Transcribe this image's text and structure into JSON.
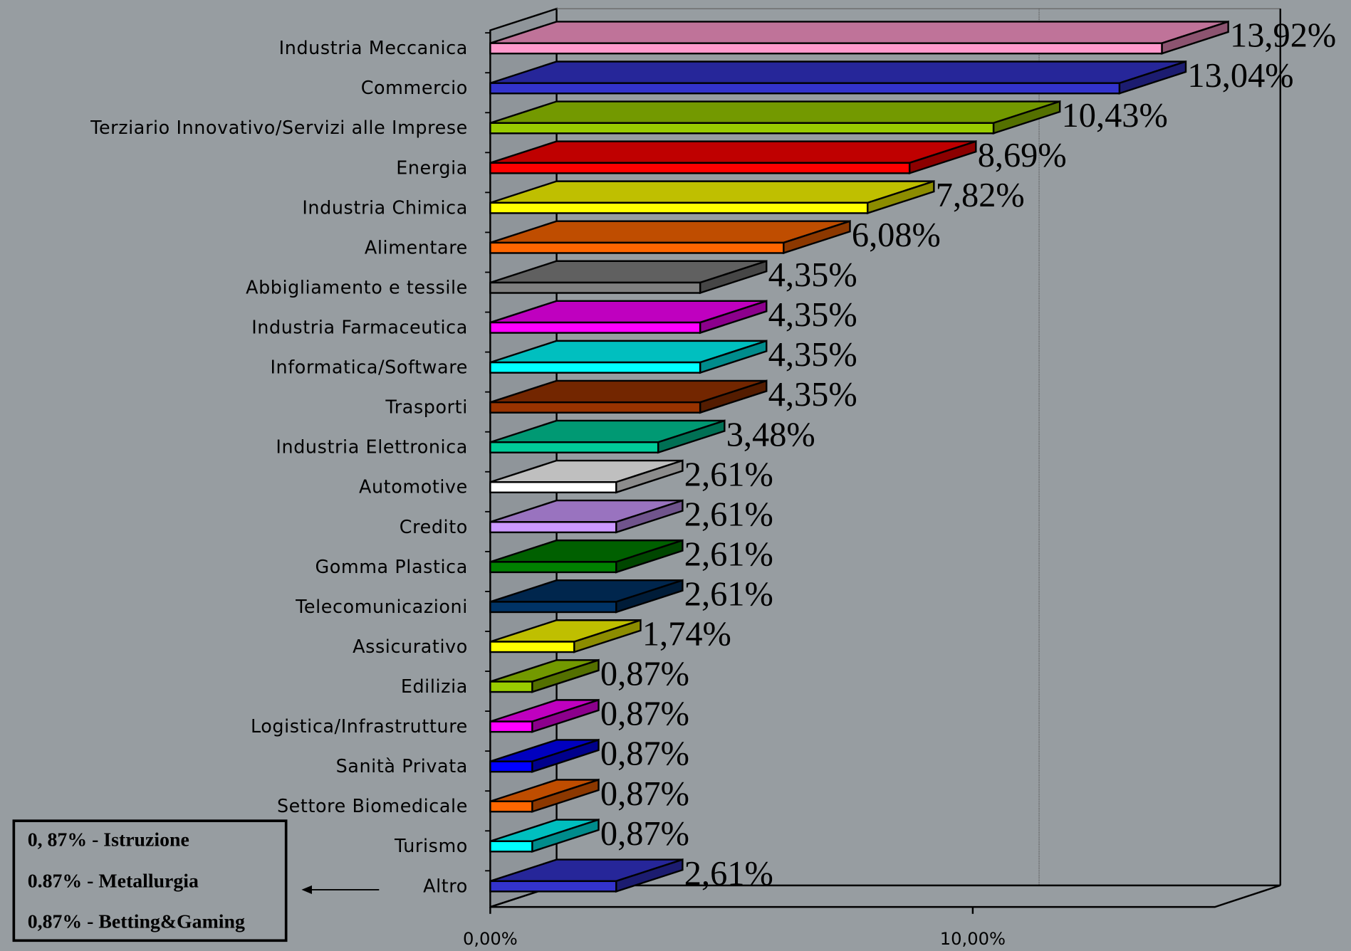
{
  "chart_data": {
    "type": "bar3d-horizontal",
    "categories": [
      "Industria Meccanica",
      "Commercio",
      "Terziario Innovativo/Servizi alle Imprese",
      "Energia",
      "Industria Chimica",
      "Alimentare",
      "Abbigliamento e tessile",
      "Industria Farmaceutica",
      "Informatica/Software",
      "Trasporti",
      "Industria Elettronica",
      "Automotive",
      "Credito",
      "Gomma Plastica",
      "Telecomunicazioni",
      "Assicurativo",
      "Edilizia",
      "Logistica/Infrastrutture",
      "Sanità Privata",
      "Settore Biomedicale",
      "Turismo",
      "Altro"
    ],
    "values": [
      13.92,
      13.04,
      10.43,
      8.69,
      7.82,
      6.08,
      4.35,
      4.35,
      4.35,
      4.35,
      3.48,
      2.61,
      2.61,
      2.61,
      2.61,
      1.74,
      0.87,
      0.87,
      0.87,
      0.87,
      0.87,
      2.61
    ],
    "value_labels": [
      "13,92%",
      "13,04%",
      "10,43%",
      "8,69%",
      "7,82%",
      "6,08%",
      "4,35%",
      "4,35%",
      "4,35%",
      "4,35%",
      "3,48%",
      "2,61%",
      "2,61%",
      "2,61%",
      "2,61%",
      "1,74%",
      "0,87%",
      "0,87%",
      "0,87%",
      "0,87%",
      "0,87%",
      "2,61%"
    ],
    "colors": [
      "#ff99cc",
      "#3333cc",
      "#99cc00",
      "#ff0000",
      "#ffff00",
      "#ff6600",
      "#808080",
      "#ff00ff",
      "#00ffff",
      "#993300",
      "#00cc99",
      "#ffffff",
      "#cc99ff",
      "#008000",
      "#003366",
      "#ffff00",
      "#99cc00",
      "#ff00ff",
      "#0000ff",
      "#ff6600",
      "#00ffff",
      "#3333cc"
    ],
    "xlim": [
      0,
      15
    ],
    "xticks": [
      {
        "value": 0,
        "label": "0,00%"
      },
      {
        "value": 10,
        "label": "10,00%"
      }
    ],
    "grid": true
  },
  "notes": [
    "0, 87% - Istruzione",
    "0.87% - Metallurgia",
    "0,87% - Betting&Gaming"
  ]
}
